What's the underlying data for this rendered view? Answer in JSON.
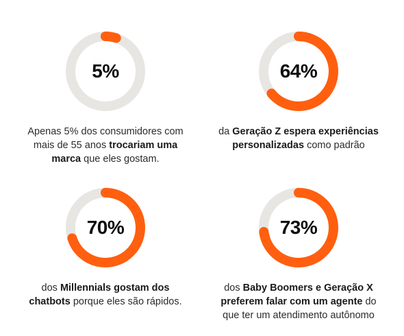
{
  "chart_data": [
    {
      "type": "pie",
      "value": 5,
      "unit": "%",
      "label": "5%",
      "caption": [
        "Apenas 5% dos consumidores com mais de 55 anos ",
        "trocariam uma marca",
        " que eles gostam."
      ]
    },
    {
      "type": "pie",
      "value": 64,
      "unit": "%",
      "label": "64%",
      "caption": [
        "da ",
        "Geração Z espera experiências personalizadas",
        " como padrão"
      ]
    },
    {
      "type": "pie",
      "value": 70,
      "unit": "%",
      "label": "70%",
      "caption": [
        "dos ",
        "Millennials gostam dos chatbots",
        " porque eles são rápidos."
      ]
    },
    {
      "type": "pie",
      "value": 73,
      "unit": "%",
      "label": "73%",
      "caption": [
        "dos ",
        "Baby Boomers e Geração X preferem falar com um agente",
        " do que ter um atendimento autônomo"
      ]
    }
  ],
  "colors": {
    "accent": "#ff5f0f",
    "track": "#e7e6e3",
    "text": "#2b2b2b",
    "percent_text": "#0d0d0d"
  }
}
